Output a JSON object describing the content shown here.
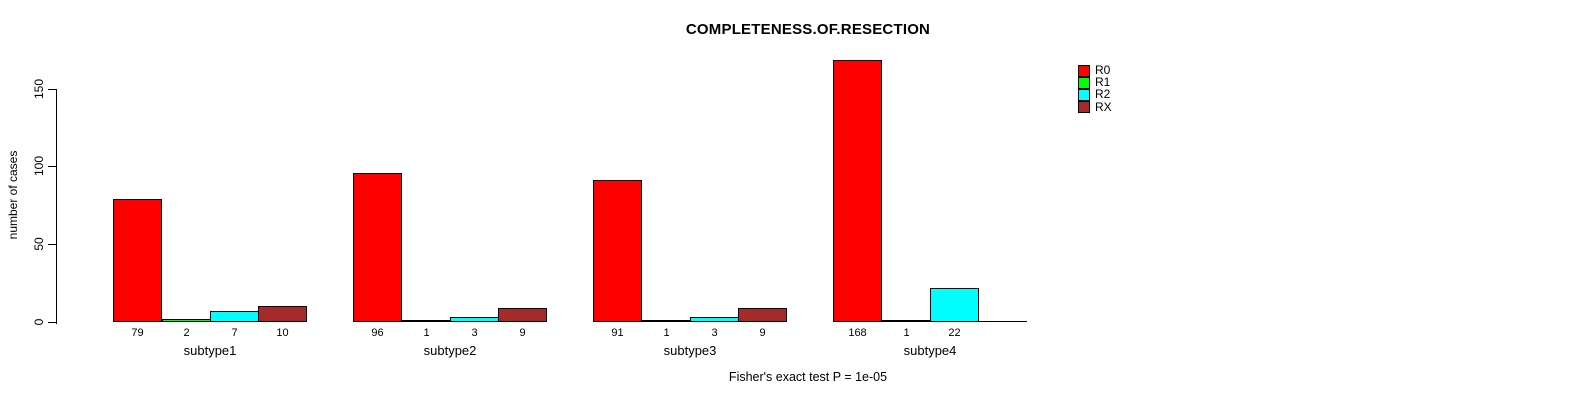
{
  "title": "COMPLETENESS.OF.RESECTION",
  "chart_data": {
    "type": "bar",
    "grouped": true,
    "title": "COMPLETENESS.OF.RESECTION",
    "xlabel": "",
    "ylabel": "number of cases",
    "ylim": [
      0,
      150
    ],
    "yticks": [
      0,
      50,
      100,
      150
    ],
    "grid": false,
    "legend_position": "top-right",
    "categories": [
      "subtype1",
      "subtype2",
      "subtype3",
      "subtype4"
    ],
    "series": [
      {
        "name": "R0",
        "color": "#FF0000",
        "values": [
          79,
          96,
          91,
          168
        ]
      },
      {
        "name": "R1",
        "color": "#00FF00",
        "values": [
          2,
          1,
          1,
          1
        ]
      },
      {
        "name": "R2",
        "color": "#00FFFF",
        "values": [
          7,
          3,
          3,
          22
        ]
      },
      {
        "name": "RX",
        "color": "#A52A2A",
        "values": [
          10,
          9,
          9,
          0
        ]
      }
    ],
    "bar_value_labels": {
      "subtype1": [
        "79",
        "2",
        "7",
        "10"
      ],
      "subtype2": [
        "96",
        "1",
        "3",
        "9"
      ],
      "subtype3": [
        "91",
        "1",
        "3",
        "9"
      ],
      "subtype4": [
        "168",
        "1",
        "22",
        ""
      ]
    },
    "annotation": "Fisher's exact test P = 1e-05",
    "colors": {
      "bar_border": "#000000",
      "axis": "#000000",
      "text": "#000000",
      "background": "#FFFFFF"
    }
  }
}
